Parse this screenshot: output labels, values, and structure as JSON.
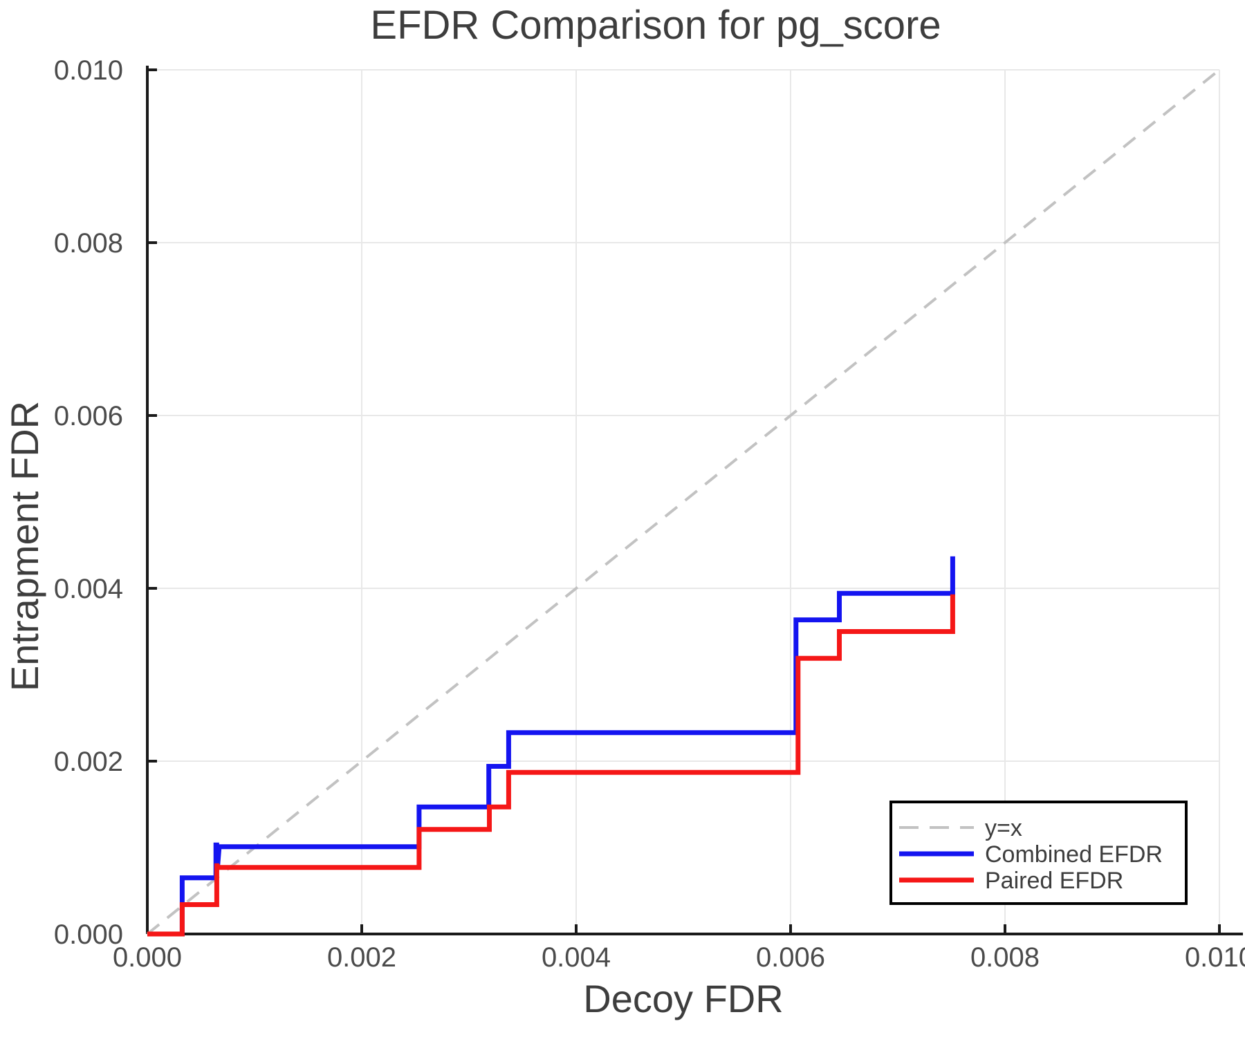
{
  "title": "EFDR Comparison for pg_score",
  "colors": {
    "combined_efdr": "#1414f0",
    "paired_efdr": "#f51717",
    "identity_line": "#c2c2c2",
    "grid": "#e8e8e8",
    "axis": "#1a1a1a",
    "text": "#3d3d3d",
    "tick_text": "#4b4b4b",
    "legend_border": "#000000",
    "background": "#ffffff"
  },
  "chart_data": {
    "type": "line",
    "title": "EFDR Comparison for pg_score",
    "xlabel": "Decoy FDR",
    "ylabel": "Entrapment FDR",
    "xlim": [
      0.0,
      0.01
    ],
    "ylim": [
      0.0,
      0.01
    ],
    "grid": true,
    "legend_position": "bottom-right",
    "x_tick_values": [
      0.0,
      0.002,
      0.004,
      0.006,
      0.008,
      0.01
    ],
    "x_tick_labels": [
      "0.000",
      "0.002",
      "0.004",
      "0.006",
      "0.008",
      "0.010"
    ],
    "y_tick_values": [
      0.0,
      0.002,
      0.004,
      0.006,
      0.008,
      0.01
    ],
    "y_tick_labels": [
      "0.000",
      "0.002",
      "0.004",
      "0.006",
      "0.008",
      "0.010"
    ],
    "series": [
      {
        "name": "y=x",
        "role": "reference",
        "style": "dashed",
        "color": "#c2c2c2",
        "stroke_width": 4,
        "points": [
          [
            0.0,
            0.0
          ],
          [
            0.01,
            0.01
          ]
        ]
      },
      {
        "name": "Combined EFDR",
        "role": "data",
        "style": "solid",
        "color": "#1414f0",
        "stroke_width": 7,
        "points": [
          [
            0.0,
            0.0
          ],
          [
            0.000325,
            0.0
          ],
          [
            0.000325,
            0.00065
          ],
          [
            0.00064,
            0.00065
          ],
          [
            0.00064,
            0.00103
          ],
          [
            0.000648,
            0.00103
          ],
          [
            0.000655,
            0.000775
          ],
          [
            0.00067,
            0.00101
          ],
          [
            0.002535,
            0.00101
          ],
          [
            0.002535,
            0.00147
          ],
          [
            0.003185,
            0.00147
          ],
          [
            0.003185,
            0.00194
          ],
          [
            0.00337,
            0.00194
          ],
          [
            0.00337,
            0.00233
          ],
          [
            0.00605,
            0.00233
          ],
          [
            0.00605,
            0.003635
          ],
          [
            0.006455,
            0.003635
          ],
          [
            0.006455,
            0.003942
          ],
          [
            0.007512,
            0.003942
          ],
          [
            0.007512,
            0.00437
          ]
        ]
      },
      {
        "name": "Paired EFDR",
        "role": "data",
        "style": "solid",
        "color": "#f51717",
        "stroke_width": 7,
        "points": [
          [
            0.0,
            0.0
          ],
          [
            0.000325,
            0.0
          ],
          [
            0.000325,
            0.00034
          ],
          [
            0.000648,
            0.00034
          ],
          [
            0.000648,
            0.00079
          ],
          [
            0.000655,
            0.00079
          ],
          [
            0.000663,
            0.00077
          ],
          [
            0.002535,
            0.00077
          ],
          [
            0.002535,
            0.00121
          ],
          [
            0.00319,
            0.00121
          ],
          [
            0.00319,
            0.00147
          ],
          [
            0.00337,
            0.00147
          ],
          [
            0.00337,
            0.00187
          ],
          [
            0.00607,
            0.00187
          ],
          [
            0.00607,
            0.00319
          ],
          [
            0.006455,
            0.00319
          ],
          [
            0.006455,
            0.0035
          ],
          [
            0.007512,
            0.0035
          ],
          [
            0.007512,
            0.00393
          ]
        ]
      }
    ]
  }
}
